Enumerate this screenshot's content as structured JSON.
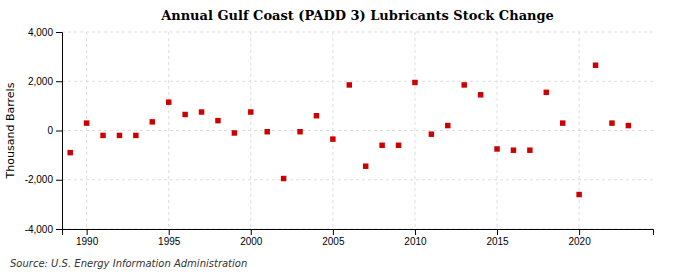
{
  "chart_data": {
    "type": "scatter",
    "title": "Annual Gulf Coast (PADD 3) Lubricants Stock Change",
    "y_label": "Thousand Barrels",
    "annotations": [
      "Source: U.S. Energy Information Administration"
    ],
    "x": [
      1989,
      1990,
      1991,
      1992,
      1993,
      1994,
      1995,
      1996,
      1997,
      1998,
      1999,
      2000,
      2001,
      2002,
      2003,
      2004,
      2005,
      2006,
      2007,
      2008,
      2009,
      2010,
      2011,
      2012,
      2013,
      2014,
      2015,
      2016,
      2017,
      2018,
      2019,
      2020,
      2021,
      2022,
      2023
    ],
    "values": [
      -900,
      300,
      -200,
      -200,
      -200,
      350,
      1150,
      650,
      750,
      400,
      -100,
      750,
      -50,
      -1950,
      -50,
      600,
      -350,
      1850,
      -1450,
      -600,
      -600,
      1950,
      -150,
      200,
      1850,
      1450,
      -750,
      -800,
      -800,
      1550,
      300,
      -2600,
      2650,
      300,
      200
    ],
    "color": "#cc0000",
    "marker": "square",
    "xlim": [
      1988.5,
      2024.5
    ],
    "ylim": [
      -4000,
      4000
    ],
    "xticks": [
      1990,
      1995,
      2000,
      2005,
      2010,
      2015,
      2020
    ],
    "yticks": [
      {
        "value": -4000,
        "label": "-4,000"
      },
      {
        "value": -2000,
        "label": "-2,000"
      },
      0,
      {
        "value": 2000,
        "label": "2,000"
      },
      {
        "value": 4000,
        "label": "4,000"
      }
    ],
    "grid": true
  }
}
